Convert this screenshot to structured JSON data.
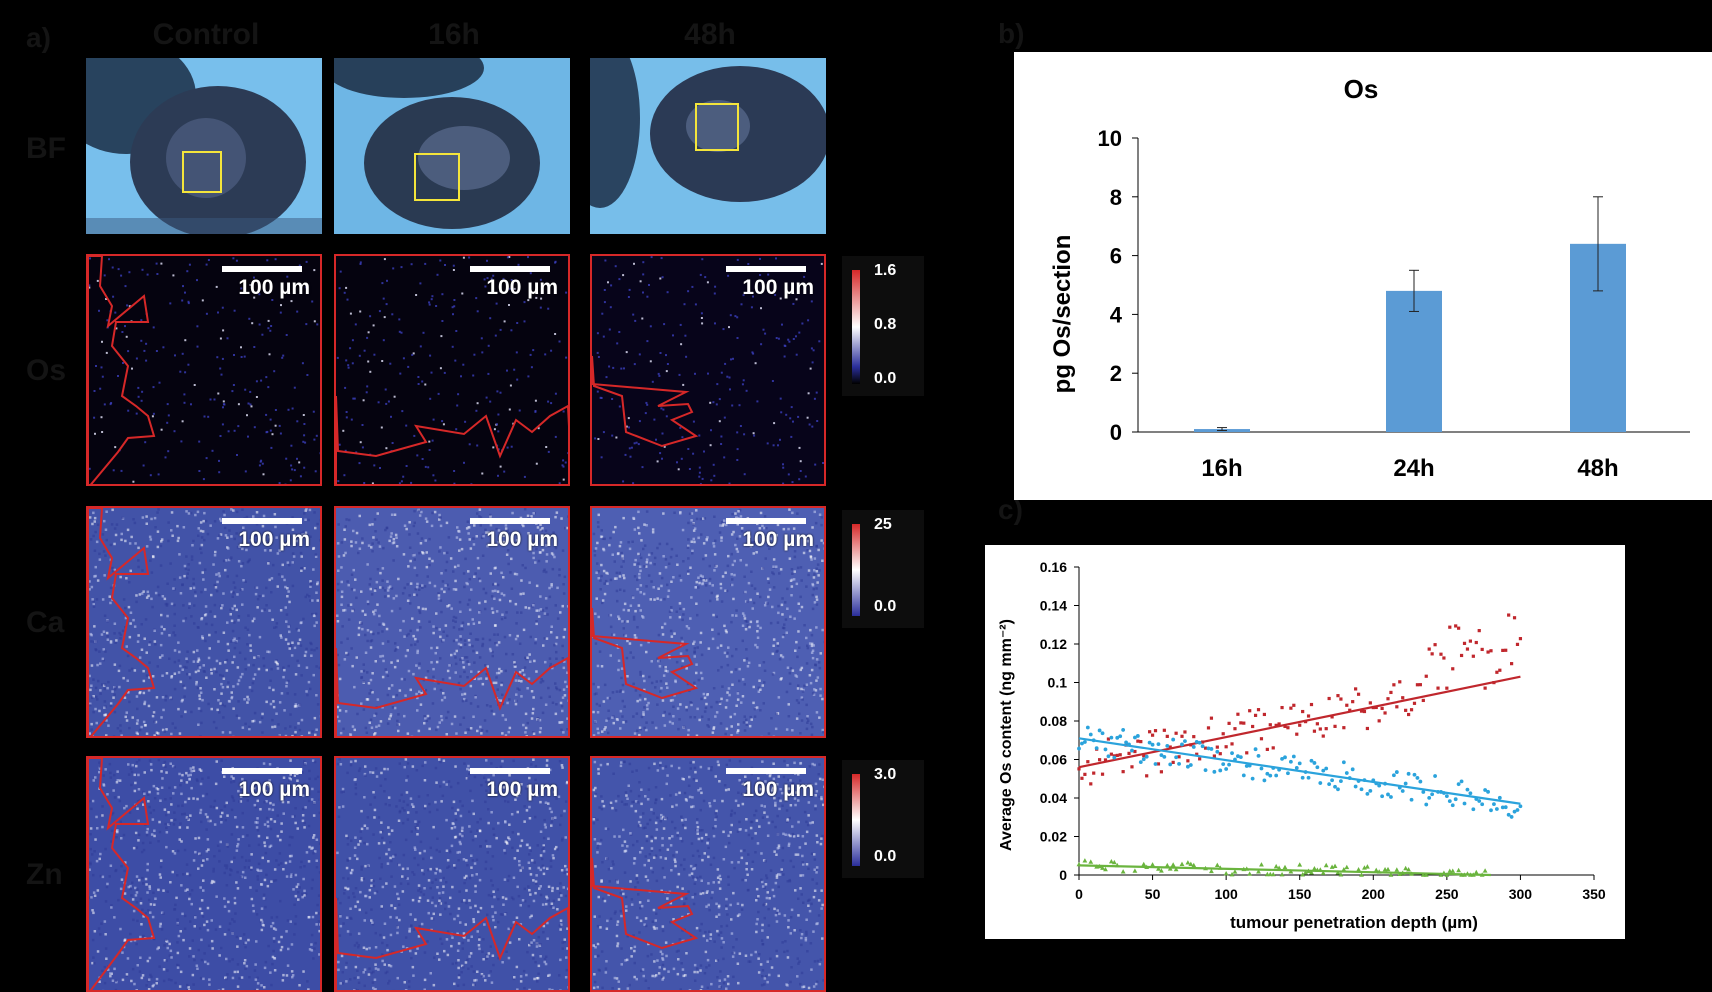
{
  "panel_labels": {
    "a": "a)",
    "b": "b)",
    "c": "c)"
  },
  "columns": [
    "Control",
    "16h",
    "48h"
  ],
  "rows": [
    "BF",
    "Os",
    "Ca",
    "Zn"
  ],
  "scale_bar": "100 µm",
  "colorbars": {
    "os": {
      "max": "1.6",
      "mid": "0.8",
      "min": "0.0"
    },
    "ca": {
      "max": "25",
      "min": "0.0"
    },
    "zn": {
      "max": "3.0",
      "min": "0.0"
    }
  },
  "colors": {
    "bar": "#5b9bd5",
    "red": "#c0272d",
    "blue": "#2ba3dc",
    "green": "#6ab43e",
    "outline": "#d62828"
  },
  "chart_data": [
    {
      "type": "bar",
      "title": "Os",
      "categories": [
        "16h",
        "24h",
        "48h"
      ],
      "values": [
        0.1,
        4.8,
        6.4
      ],
      "errors": [
        0.05,
        0.7,
        1.6
      ],
      "ylabel": "pg Os/section",
      "xlabel": "",
      "ylim": [
        0,
        10
      ],
      "yticks": [
        "0",
        "2",
        "4",
        "6",
        "8",
        "10"
      ]
    },
    {
      "type": "scatter",
      "title": "",
      "xlabel": "tumour penetration depth (µm)",
      "ylabel": "Average Os content (ng mm⁻²)",
      "xlim": [
        0,
        350
      ],
      "ylim": [
        0,
        0.16
      ],
      "xticks": [
        "0",
        "50",
        "100",
        "150",
        "200",
        "250",
        "300",
        "350"
      ],
      "yticks": [
        "0",
        "0.02",
        "0.04",
        "0.06",
        "0.08",
        "0.1",
        "0.12",
        "0.14",
        "0.16"
      ],
      "series": [
        {
          "marker": "square",
          "trend": [
            [
              0,
              0.056
            ],
            [
              300,
              0.103
            ]
          ],
          "spread": 0.012
        },
        {
          "marker": "circle",
          "trend": [
            [
              0,
              0.071
            ],
            [
              300,
              0.037
            ]
          ],
          "spread": 0.008
        },
        {
          "marker": "triangle",
          "trend": [
            [
              0,
              0.005
            ],
            [
              280,
              0.0
            ]
          ],
          "spread": 0.003
        }
      ]
    }
  ]
}
